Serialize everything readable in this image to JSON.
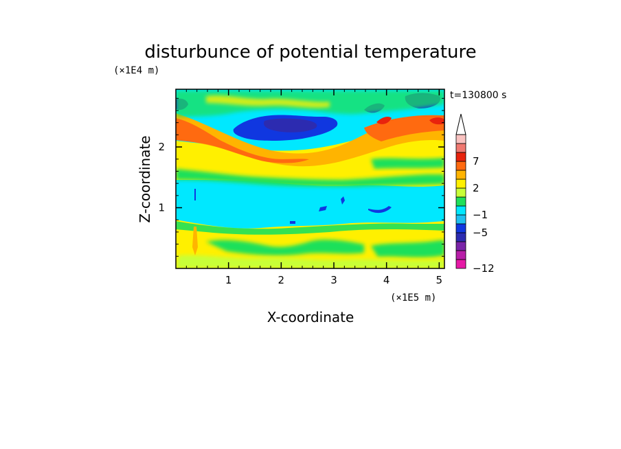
{
  "chart_data": {
    "type": "heatmap",
    "title": "disturbunce of potential temperature",
    "annotation": "t=130800 s",
    "xlabel": "X-coordinate",
    "ylabel": "Z-coordinate",
    "x_multiplier": "(×1E5 m)",
    "y_multiplier": "(×1E4 m)",
    "xlim": [
      0,
      5.1
    ],
    "ylim": [
      0,
      2.95
    ],
    "x_ticks": [
      1,
      2,
      3,
      4,
      5
    ],
    "y_ticks": [
      1,
      2
    ],
    "colorbar": {
      "levels": [
        -12,
        -11,
        -9,
        -7,
        -5,
        -3,
        -1,
        0,
        1,
        2,
        3,
        5,
        7,
        9,
        11
      ],
      "colors": [
        "#e619a6",
        "#b81ea8",
        "#7a24a8",
        "#2c2bb0",
        "#1037e0",
        "#20c0f0",
        "#00e8ff",
        "#1fe05a",
        "#c8ff38",
        "#fff000",
        "#ffb400",
        "#ff6a10",
        "#e8230d",
        "#f07870",
        "#f9c2c0",
        "#ffffff"
      ],
      "tick_labels": [
        "-12",
        "-5",
        "-1",
        "2",
        "7"
      ],
      "extend": "max"
    },
    "field_description": {
      "background": "#00e8ff",
      "bands": [
        {
          "z_from": 0.0,
          "z_to": 0.7,
          "dominant_value": 1.5
        },
        {
          "z_from": 0.7,
          "z_to": 1.4,
          "dominant_value": -1.5
        },
        {
          "z_from": 1.4,
          "z_to": 2.7,
          "dominant_value": 2
        },
        {
          "z_from": 1.7,
          "z_to": 2.6,
          "dominant_value": -6
        }
      ]
    }
  }
}
